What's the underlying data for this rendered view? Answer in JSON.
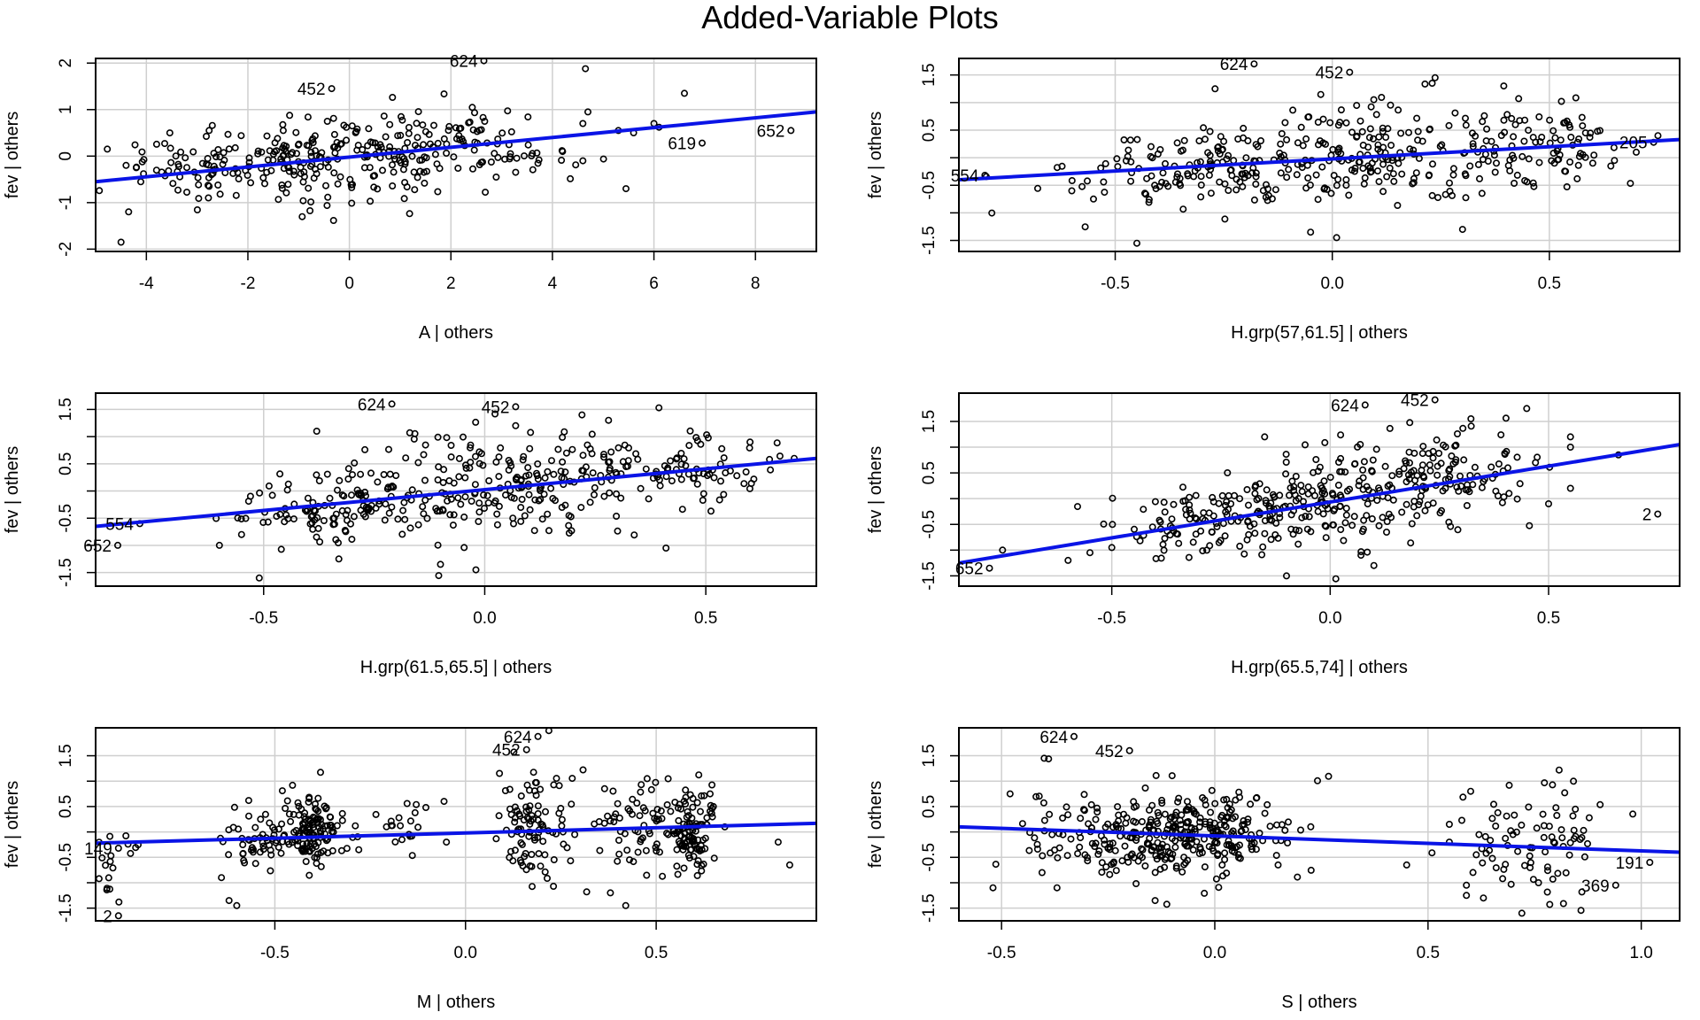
{
  "title": "Added-Variable Plots",
  "colors": {
    "fit_line": "#0a14e6",
    "points": "#000000",
    "grid": "#cfcfcf",
    "frame": "#000000"
  },
  "chart_data": [
    {
      "type": "scatter",
      "xlabel": "A | others",
      "ylabel": "fev | others",
      "xlim": [
        -5,
        9.2
      ],
      "ylim": [
        -2.05,
        2.1
      ],
      "xticks": [
        -4,
        -2,
        0,
        2,
        4,
        6,
        8
      ],
      "xtick_labels": [
        "-4",
        "-2",
        "0",
        "2",
        "4",
        "6",
        "8"
      ],
      "yticks": [
        -2,
        -1,
        0,
        1,
        2
      ],
      "ytick_labels": [
        "-2",
        "-1",
        "0",
        "1",
        "2"
      ],
      "grid": true,
      "fit_line": {
        "x": [
          -5,
          9.2
        ],
        "y": [
          -0.55,
          0.95
        ]
      },
      "labeled_points": [
        {
          "label": "624",
          "x": 2.65,
          "y": 2.05
        },
        {
          "label": "452",
          "x": -0.35,
          "y": 1.45
        },
        {
          "label": "619",
          "x": 6.95,
          "y": 0.28
        },
        {
          "label": "652",
          "x": 8.7,
          "y": 0.55
        }
      ],
      "cloud": [
        {
          "cx": -1.0,
          "cy": -0.1,
          "sx": 1.5,
          "sy": 0.42,
          "n": 200
        },
        {
          "cx": 1.4,
          "cy": 0.22,
          "sx": 1.0,
          "sy": 0.35,
          "n": 90
        },
        {
          "cx": 3.4,
          "cy": 0.3,
          "sx": 0.8,
          "sy": 0.38,
          "n": 30
        },
        {
          "cx": -3.2,
          "cy": -0.3,
          "sx": 0.6,
          "sy": 0.35,
          "n": 25
        }
      ],
      "extra_points": [
        [
          -4.5,
          -1.85
        ],
        [
          -4.35,
          -1.2
        ],
        [
          -4.4,
          -0.2
        ],
        [
          -4.2,
          -0.25
        ],
        [
          4.65,
          1.88
        ],
        [
          4.7,
          0.95
        ],
        [
          4.6,
          0.7
        ],
        [
          5.3,
          0.55
        ],
        [
          5.6,
          0.5
        ],
        [
          5.45,
          -0.7
        ],
        [
          6.1,
          0.62
        ],
        [
          6.6,
          1.35
        ],
        [
          6.0,
          0.7
        ],
        [
          4.2,
          0.1
        ],
        [
          4.6,
          -0.1
        ]
      ]
    },
    {
      "type": "scatter",
      "xlabel": "H.grp(57,61.5] | others",
      "ylabel": "fev | others",
      "xlim": [
        -0.86,
        0.8
      ],
      "ylim": [
        -1.7,
        1.8
      ],
      "xticks": [
        -0.5,
        0.0,
        0.5
      ],
      "xtick_labels": [
        "-0.5",
        "0.0",
        "0.5"
      ],
      "yticks": [
        -1.5,
        -1.0,
        -0.5,
        0.0,
        0.5,
        1.0,
        1.5
      ],
      "ytick_labels": [
        "-1.5",
        "",
        "-0.5",
        "",
        "0.5",
        "",
        "1.5"
      ],
      "grid": true,
      "fit_line": {
        "x": [
          -0.86,
          0.8
        ],
        "y": [
          -0.4,
          0.33
        ]
      },
      "labeled_points": [
        {
          "label": "624",
          "x": -0.18,
          "y": 1.7
        },
        {
          "label": "452",
          "x": 0.04,
          "y": 1.55
        },
        {
          "label": "554",
          "x": -0.8,
          "y": -0.32
        },
        {
          "label": "205",
          "x": 0.74,
          "y": 0.28
        }
      ],
      "cloud": [
        {
          "cx": -0.3,
          "cy": -0.2,
          "sx": 0.15,
          "sy": 0.35,
          "n": 140
        },
        {
          "cx": 0.05,
          "cy": 0.1,
          "sx": 0.15,
          "sy": 0.5,
          "n": 160
        },
        {
          "cx": 0.45,
          "cy": 0.2,
          "sx": 0.12,
          "sy": 0.35,
          "n": 110
        }
      ],
      "extra_points": [
        [
          -0.6,
          -0.6
        ],
        [
          -0.55,
          -0.75
        ],
        [
          -0.27,
          1.25
        ],
        [
          -0.05,
          -1.35
        ],
        [
          0.01,
          -1.45
        ],
        [
          -0.45,
          -1.55
        ],
        [
          0.3,
          -1.3
        ],
        [
          0.65,
          -0.05
        ],
        [
          0.7,
          0.1
        ],
        [
          0.75,
          0.4
        ],
        [
          0.6,
          -0.1
        ],
        [
          0.23,
          1.35
        ]
      ]
    },
    {
      "type": "scatter",
      "xlabel": "H.grp(61.5,65.5] | others",
      "ylabel": "fev | others",
      "xlim": [
        -0.88,
        0.75
      ],
      "ylim": [
        -1.75,
        1.8
      ],
      "xticks": [
        -0.5,
        0.0,
        0.5
      ],
      "xtick_labels": [
        "-0.5",
        "0.0",
        "0.5"
      ],
      "yticks": [
        -1.5,
        -1.0,
        -0.5,
        0.0,
        0.5,
        1.0,
        1.5
      ],
      "ytick_labels": [
        "-1.5",
        "",
        "-0.5",
        "",
        "0.5",
        "",
        "1.5"
      ],
      "grid": true,
      "fit_line": {
        "x": [
          -0.88,
          0.75
        ],
        "y": [
          -0.65,
          0.6
        ]
      },
      "labeled_points": [
        {
          "label": "624",
          "x": -0.21,
          "y": 1.6
        },
        {
          "label": "452",
          "x": 0.07,
          "y": 1.55
        },
        {
          "label": "554",
          "x": -0.78,
          "y": -0.6
        },
        {
          "label": "652",
          "x": -0.83,
          "y": -1.0
        }
      ],
      "cloud": [
        {
          "cx": -0.3,
          "cy": -0.3,
          "sx": 0.13,
          "sy": 0.35,
          "n": 130
        },
        {
          "cx": 0.05,
          "cy": 0.1,
          "sx": 0.15,
          "sy": 0.5,
          "n": 170
        },
        {
          "cx": 0.4,
          "cy": 0.4,
          "sx": 0.12,
          "sy": 0.35,
          "n": 100
        }
      ],
      "extra_points": [
        [
          -0.51,
          -1.6
        ],
        [
          -0.33,
          -1.25
        ],
        [
          -0.38,
          1.1
        ],
        [
          -0.02,
          -1.45
        ],
        [
          0.07,
          1.2
        ],
        [
          0.22,
          1.4
        ],
        [
          0.41,
          -1.05
        ],
        [
          0.6,
          0.9
        ],
        [
          0.7,
          0.6
        ],
        [
          -0.6,
          -1.0
        ],
        [
          -0.55,
          -0.8
        ],
        [
          -0.1,
          -1.35
        ],
        [
          0.28,
          1.3
        ]
      ]
    },
    {
      "type": "scatter",
      "xlabel": "H.grp(65.5,74] | others",
      "ylabel": "fev | others",
      "xlim": [
        -0.85,
        0.8
      ],
      "ylim": [
        -1.7,
        2.05
      ],
      "xticks": [
        -0.5,
        0.0,
        0.5
      ],
      "xtick_labels": [
        "-0.5",
        "0.0",
        "0.5"
      ],
      "yticks": [
        -1.5,
        -1.0,
        -0.5,
        0.0,
        0.5,
        1.0,
        1.5
      ],
      "ytick_labels": [
        "-1.5",
        "",
        "-0.5",
        "",
        "0.5",
        "",
        "1.5"
      ],
      "grid": true,
      "fit_line": {
        "x": [
          -0.85,
          0.8
        ],
        "y": [
          -1.25,
          1.05
        ]
      },
      "labeled_points": [
        {
          "label": "624",
          "x": 0.08,
          "y": 1.82
        },
        {
          "label": "452",
          "x": 0.24,
          "y": 1.92
        },
        {
          "label": "652",
          "x": -0.78,
          "y": -1.35
        },
        {
          "label": "2",
          "x": 0.75,
          "y": -0.3
        }
      ],
      "cloud": [
        {
          "cx": -0.3,
          "cy": -0.5,
          "sx": 0.12,
          "sy": 0.35,
          "n": 100
        },
        {
          "cx": 0.0,
          "cy": -0.05,
          "sx": 0.12,
          "sy": 0.45,
          "n": 170
        },
        {
          "cx": 0.27,
          "cy": 0.45,
          "sx": 0.1,
          "sy": 0.5,
          "n": 110
        }
      ],
      "extra_points": [
        [
          -0.75,
          -1.0
        ],
        [
          -0.6,
          -1.2
        ],
        [
          -0.55,
          -1.05
        ],
        [
          -0.5,
          -0.95
        ],
        [
          -0.1,
          -1.5
        ],
        [
          0.1,
          -1.3
        ],
        [
          0.45,
          1.75
        ],
        [
          0.55,
          1.2
        ],
        [
          0.55,
          1.0
        ],
        [
          0.5,
          -0.1
        ],
        [
          0.55,
          0.2
        ],
        [
          0.66,
          0.85
        ],
        [
          0.47,
          0.7
        ],
        [
          -0.15,
          1.2
        ]
      ]
    },
    {
      "type": "scatter",
      "xlabel": "M | others",
      "ylabel": "fev | others",
      "xlim": [
        -0.97,
        0.92
      ],
      "ylim": [
        -1.75,
        2.05
      ],
      "xticks": [
        -0.5,
        0.0,
        0.5
      ],
      "xtick_labels": [
        "-0.5",
        "0.0",
        "0.5"
      ],
      "yticks": [
        -1.5,
        -1.0,
        -0.5,
        0.0,
        0.5,
        1.0,
        1.5
      ],
      "ytick_labels": [
        "-1.5",
        "",
        "-0.5",
        "",
        "0.5",
        "",
        "1.5"
      ],
      "grid": true,
      "fit_line": {
        "x": [
          -0.97,
          0.92
        ],
        "y": [
          -0.22,
          0.17
        ]
      },
      "labeled_points": [
        {
          "label": "624",
          "x": 0.19,
          "y": 1.88
        },
        {
          "label": "452",
          "x": 0.16,
          "y": 1.62
        },
        {
          "label": "149",
          "x": -0.91,
          "y": -0.32
        },
        {
          "label": "2",
          "x": -0.91,
          "y": -1.65
        }
      ],
      "cloud": [
        {
          "cx": -0.91,
          "cy": -0.55,
          "sx": 0.03,
          "sy": 0.45,
          "n": 18
        },
        {
          "cx": -0.53,
          "cy": -0.1,
          "sx": 0.05,
          "sy": 0.35,
          "n": 60
        },
        {
          "cx": -0.4,
          "cy": 0.05,
          "sx": 0.04,
          "sy": 0.35,
          "n": 120
        },
        {
          "cx": -0.15,
          "cy": 0.2,
          "sx": 0.05,
          "sy": 0.35,
          "n": 20
        },
        {
          "cx": 0.17,
          "cy": 0.1,
          "sx": 0.05,
          "sy": 0.6,
          "n": 100
        },
        {
          "cx": 0.45,
          "cy": 0.2,
          "sx": 0.05,
          "sy": 0.45,
          "n": 60
        },
        {
          "cx": 0.59,
          "cy": 0.05,
          "sx": 0.03,
          "sy": 0.4,
          "n": 110
        }
      ],
      "extra_points": [
        [
          -0.64,
          -0.9
        ],
        [
          -0.62,
          -1.35
        ],
        [
          -0.6,
          -1.45
        ],
        [
          0.38,
          -1.2
        ],
        [
          0.42,
          -1.45
        ],
        [
          0.82,
          -0.2
        ],
        [
          0.85,
          -0.65
        ],
        [
          0.68,
          0.1
        ],
        [
          -0.28,
          -0.35
        ],
        [
          -0.05,
          -0.2
        ],
        [
          0.65,
          0.5
        ]
      ]
    },
    {
      "type": "scatter",
      "xlabel": "S | others",
      "ylabel": "fev | others",
      "xlim": [
        -0.6,
        1.09
      ],
      "ylim": [
        -1.75,
        2.05
      ],
      "xticks": [
        -0.5,
        0.0,
        0.5,
        1.0
      ],
      "xtick_labels": [
        "-0.5",
        "0.0",
        "0.5",
        "1.0"
      ],
      "yticks": [
        -1.5,
        -1.0,
        -0.5,
        0.0,
        0.5,
        1.0,
        1.5
      ],
      "ytick_labels": [
        "-1.5",
        "",
        "-0.5",
        "",
        "0.5",
        "",
        "1.5"
      ],
      "grid": true,
      "fit_line": {
        "x": [
          -0.6,
          1.09
        ],
        "y": [
          0.1,
          -0.4
        ]
      },
      "labeled_points": [
        {
          "label": "624",
          "x": -0.33,
          "y": 1.88
        },
        {
          "label": "452",
          "x": -0.2,
          "y": 1.6
        },
        {
          "label": "191",
          "x": 1.02,
          "y": -0.6
        },
        {
          "label": "369",
          "x": 0.94,
          "y": -1.05
        }
      ],
      "cloud": [
        {
          "cx": -0.1,
          "cy": 0.0,
          "sx": 0.13,
          "sy": 0.4,
          "n": 330
        },
        {
          "cx": 0.75,
          "cy": -0.1,
          "sx": 0.09,
          "sy": 0.6,
          "n": 85
        },
        {
          "cx": -0.38,
          "cy": -0.2,
          "sx": 0.07,
          "sy": 0.45,
          "n": 25
        }
      ],
      "extra_points": [
        [
          -0.52,
          -1.1
        ],
        [
          -0.48,
          0.75
        ],
        [
          -0.4,
          1.45
        ],
        [
          -0.37,
          -1.1
        ],
        [
          -0.14,
          -1.35
        ],
        [
          0.45,
          -0.65
        ],
        [
          0.59,
          -1.05
        ],
        [
          0.59,
          -1.25
        ],
        [
          0.63,
          -1.3
        ],
        [
          0.72,
          -1.6
        ],
        [
          0.55,
          -0.2
        ],
        [
          0.55,
          0.15
        ],
        [
          0.6,
          0.8
        ]
      ]
    }
  ]
}
